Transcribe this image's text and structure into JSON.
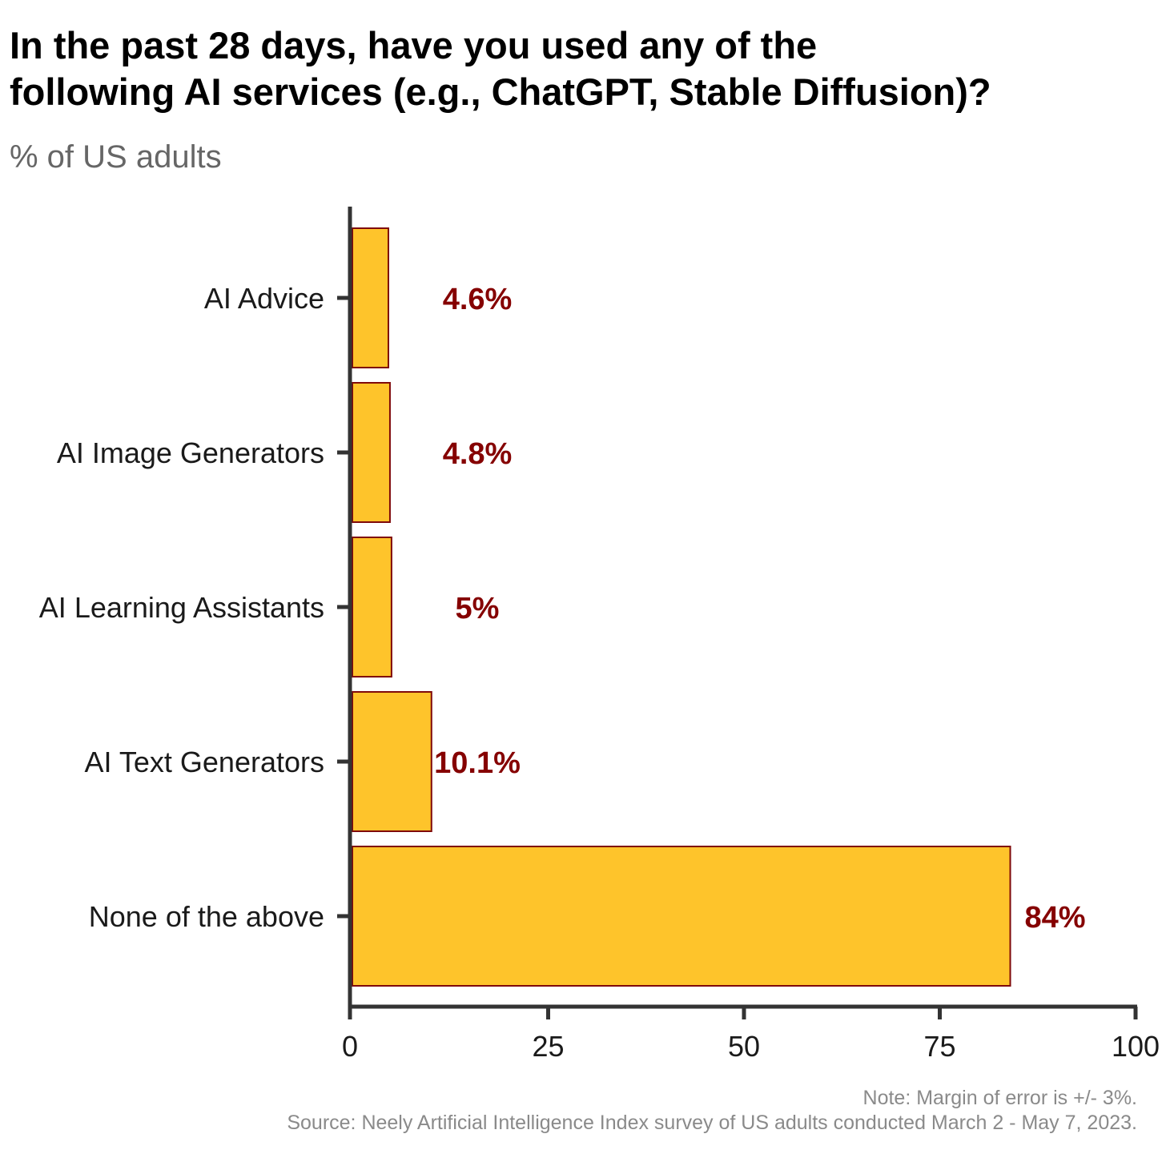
{
  "chart_data": {
    "type": "bar",
    "orientation": "horizontal",
    "title_lines": [
      "In the past 28 days, have you used any of the",
      "following AI services (e.g., ChatGPT, Stable Diffusion)?"
    ],
    "subtitle": "% of US adults",
    "categories": [
      "AI Advice",
      "AI Image Generators",
      "AI Learning Assistants",
      "AI Text Generators",
      "None of the above"
    ],
    "values": [
      4.6,
      4.8,
      5,
      10.1,
      84
    ],
    "value_labels": [
      "4.6%",
      "4.8%",
      "5%",
      "10.1%",
      "84%"
    ],
    "xlim": [
      0,
      100
    ],
    "xticks": [
      "0",
      "25",
      "50",
      "75",
      "100"
    ],
    "xtick_values": [
      0,
      25,
      50,
      75,
      100
    ],
    "grid": false,
    "legend": "none",
    "colors": {
      "bar_fill": "#FEC42B",
      "bar_stroke": "#7F0A0A",
      "label": "#850000",
      "axis": "#333333"
    }
  },
  "footer": {
    "note": "Note: Margin of error is +/- 3%.",
    "source": "Source: Neely Artificial Intelligence Index survey of US adults conducted March 2 - May 7, 2023."
  }
}
